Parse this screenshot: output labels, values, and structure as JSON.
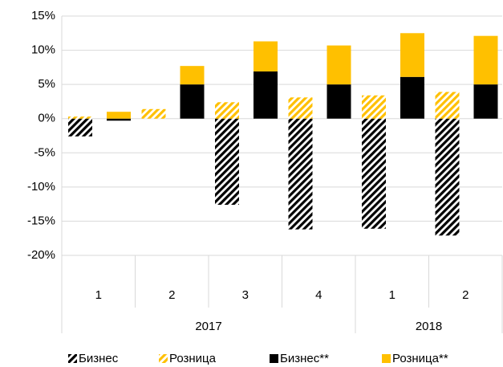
{
  "chart_data": {
    "type": "bar",
    "categories": [
      "1",
      "2",
      "3",
      "4",
      "1",
      "2"
    ],
    "years": [
      "2017",
      "2017",
      "2017",
      "2017",
      "2018",
      "2018"
    ],
    "series": [
      {
        "name": "Бизнес",
        "color": "#000000",
        "hatch": true,
        "stack": "a",
        "values": [
          -2.6,
          0,
          -12.6,
          -16.2,
          -16.1,
          -17.1
        ]
      },
      {
        "name": "Розница",
        "color": "#ffc000",
        "hatch": true,
        "stack": "a",
        "values": [
          0.3,
          1.4,
          2.4,
          3.1,
          3.4,
          3.9
        ]
      },
      {
        "name": "Бизнес**",
        "color": "#000000",
        "hatch": false,
        "stack": "b",
        "values": [
          -0.3,
          5.0,
          6.9,
          5.0,
          6.1,
          5.0
        ]
      },
      {
        "name": "Розница**",
        "color": "#ffc000",
        "hatch": false,
        "stack": "b",
        "values": [
          1.0,
          2.7,
          4.4,
          5.7,
          6.4,
          7.1
        ]
      }
    ],
    "ylim": [
      -20,
      15
    ],
    "yticks": [
      {
        "value": -20,
        "label": "-20%"
      },
      {
        "value": -15,
        "label": "-15%"
      },
      {
        "value": -10,
        "label": "-10%"
      },
      {
        "value": -5,
        "label": "-5%"
      },
      {
        "value": 0,
        "label": "0%"
      },
      {
        "value": 5,
        "label": "5%"
      },
      {
        "value": 10,
        "label": "10%"
      },
      {
        "value": 15,
        "label": "15%"
      }
    ],
    "grid": true
  }
}
